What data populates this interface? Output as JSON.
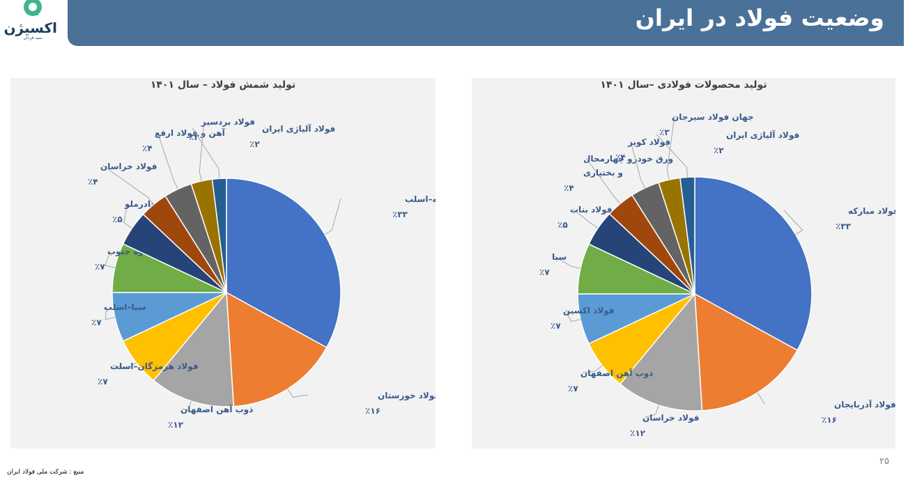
{
  "header": {
    "title": "وضعیت فولاد در ایران",
    "logo_text": "اکسیژن",
    "logo_subtext": "سید فردان",
    "bar_color": "#4a7198"
  },
  "footer": {
    "page_number": "۲۵",
    "source": "منبع : شرکت ملی فولاد ایران"
  },
  "chart_data": [
    {
      "type": "pie",
      "title": "تولید شمش فولاد – سال ۱۴۰۱",
      "slices": [
        {
          "name": "فولاد مبارکه–اسلب",
          "value": 33,
          "label": "٪۳۳",
          "color": "#4472c4"
        },
        {
          "name": "فولاد خوزستان",
          "value": 16,
          "label": "٪۱۶",
          "color": "#ed7d31"
        },
        {
          "name": "ذوب آهن اصفهان",
          "value": 12,
          "label": "٪۱۲",
          "color": "#a5a5a5"
        },
        {
          "name": "فولاد هرمزگان–اسلب",
          "value": 7,
          "label": "٪۷",
          "color": "#ffc000"
        },
        {
          "name": "سبا–اسلب",
          "value": 7,
          "label": "٪۷",
          "color": "#5b9bd5"
        },
        {
          "name": "فولاد کاوه جنوب",
          "value": 7,
          "label": "٪۷",
          "color": "#70ad47"
        },
        {
          "name": "فولاد چادرملو",
          "value": 5,
          "label": "٪۵",
          "color": "#264478"
        },
        {
          "name": "فولاد خراسان",
          "value": 4,
          "label": "٪۴",
          "color": "#9e480e"
        },
        {
          "name": "آهن و فولاد ارفع",
          "value": 4,
          "label": "٪۴",
          "color": "#636363"
        },
        {
          "name": "فولاد بردسیر",
          "value": 3,
          "label": "٪۳",
          "color": "#997300"
        },
        {
          "name": "فولاد آلیاژی ایران",
          "value": 2,
          "label": "٪۲",
          "color": "#255e91"
        }
      ]
    },
    {
      "type": "pie",
      "title": "تولید محصولات فولادی –سال ۱۴۰۱",
      "slices": [
        {
          "name": "فولاد مبارکه",
          "value": 33,
          "label": "٪۳۳",
          "color": "#4472c4"
        },
        {
          "name": "فولاد آذربایجان",
          "value": 16,
          "label": "٪۱۶",
          "color": "#ed7d31"
        },
        {
          "name": "فولاد خراسان",
          "value": 12,
          "label": "٪۱۲",
          "color": "#a5a5a5"
        },
        {
          "name": "ذوب آهن اصفهان",
          "value": 7,
          "label": "٪۷",
          "color": "#ffc000"
        },
        {
          "name": "فولاد اکسین",
          "value": 7,
          "label": "٪۷",
          "color": "#5b9bd5"
        },
        {
          "name": "سبا",
          "value": 7,
          "label": "٪۷",
          "color": "#70ad47"
        },
        {
          "name": "فولاد بناب",
          "value": 5,
          "label": "٪۵",
          "color": "#264478"
        },
        {
          "name": "ورق خودرو چهارمحال و بختیاری",
          "value": 4,
          "label": "٪۴",
          "color": "#9e480e"
        },
        {
          "name": "فولاد کویر",
          "value": 4,
          "label": "٪۴",
          "color": "#636363"
        },
        {
          "name": "جهان فولاد سیرجان",
          "value": 3,
          "label": "٪۳",
          "color": "#997300"
        },
        {
          "name": "فولاد آلیاژی ایران",
          "value": 2,
          "label": "٪۲",
          "color": "#255e91"
        }
      ]
    }
  ]
}
